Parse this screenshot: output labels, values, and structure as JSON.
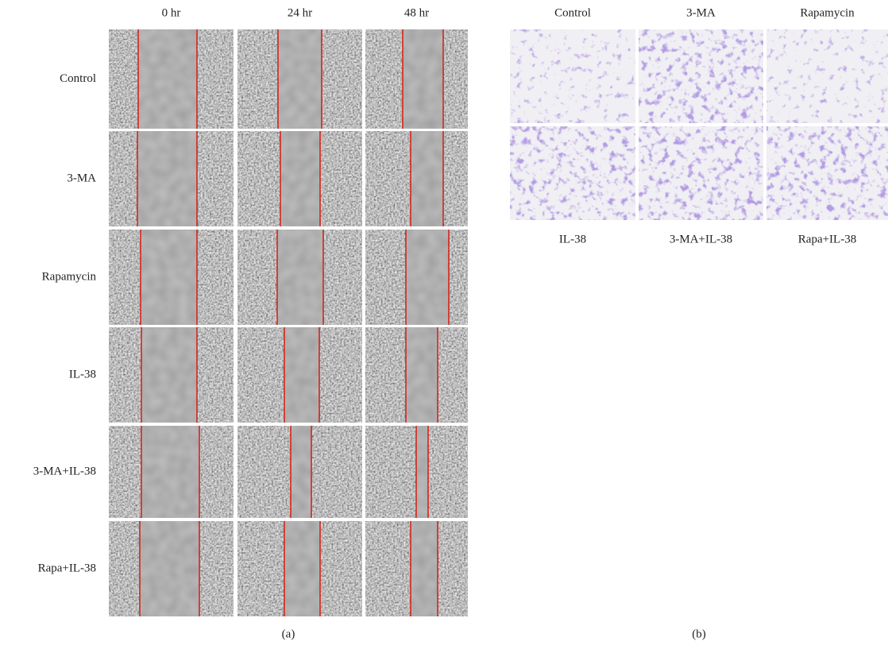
{
  "panel_a": {
    "column_headers": [
      "0 hr",
      "24 hr",
      "48 hr"
    ],
    "row_labels": [
      "Control",
      "3-MA",
      "Rapamycin",
      "IL-38",
      "3-MA+IL-38",
      "Rapa+IL-38"
    ],
    "caption": "(a)"
  },
  "panel_b": {
    "top_labels": [
      "Control",
      "3-MA",
      "Rapamycin"
    ],
    "bottom_labels": [
      "IL-38",
      "3-MA+IL-38",
      "Rapa+IL-38"
    ],
    "caption": "(b)"
  }
}
